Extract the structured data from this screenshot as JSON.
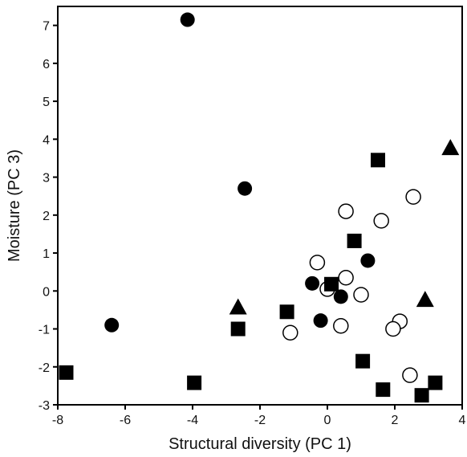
{
  "chart_data": {
    "type": "scatter",
    "xlabel": "Structural diversity  (PC 1)",
    "ylabel": "Moisture (PC 3)",
    "xlim": [
      -8,
      4
    ],
    "ylim": [
      -3,
      7.5
    ],
    "xticks": [
      "-8",
      "-6",
      "-4",
      "-2",
      "0",
      "2",
      "4"
    ],
    "yticks": [
      "-3",
      "-2",
      "-1",
      "0",
      "1",
      "2",
      "3",
      "4",
      "5",
      "6",
      "7"
    ],
    "grid": false,
    "legend": "none",
    "series": [
      {
        "marker": "filled-circle",
        "color": "#000000",
        "points": [
          [
            -4.15,
            7.15
          ],
          [
            -2.45,
            2.7
          ],
          [
            -6.4,
            -0.9
          ],
          [
            -0.45,
            0.2
          ],
          [
            0.4,
            -0.15
          ],
          [
            1.2,
            0.8
          ],
          [
            -0.2,
            -0.78
          ]
        ]
      },
      {
        "marker": "open-circle",
        "color": "#000000",
        "points": [
          [
            0.55,
            2.1
          ],
          [
            1.6,
            1.85
          ],
          [
            2.55,
            2.48
          ],
          [
            -0.3,
            0.75
          ],
          [
            0.55,
            0.35
          ],
          [
            0.0,
            0.05
          ],
          [
            1.0,
            -0.1
          ],
          [
            -1.1,
            -1.1
          ],
          [
            0.4,
            -0.92
          ],
          [
            2.15,
            -0.8
          ],
          [
            1.95,
            -1.0
          ],
          [
            2.45,
            -2.22
          ]
        ]
      },
      {
        "marker": "filled-square",
        "color": "#000000",
        "points": [
          [
            1.5,
            3.45
          ],
          [
            0.8,
            1.32
          ],
          [
            0.12,
            0.18
          ],
          [
            -1.2,
            -0.55
          ],
          [
            -2.65,
            -1.0
          ],
          [
            -7.75,
            -2.15
          ],
          [
            -3.95,
            -2.42
          ],
          [
            1.05,
            -1.85
          ],
          [
            1.65,
            -2.6
          ],
          [
            2.8,
            -2.75
          ],
          [
            3.2,
            -2.42
          ]
        ]
      },
      {
        "marker": "filled-triangle",
        "color": "#000000",
        "points": [
          [
            3.65,
            3.75
          ],
          [
            -2.65,
            -0.45
          ],
          [
            2.9,
            -0.25
          ]
        ]
      }
    ]
  }
}
